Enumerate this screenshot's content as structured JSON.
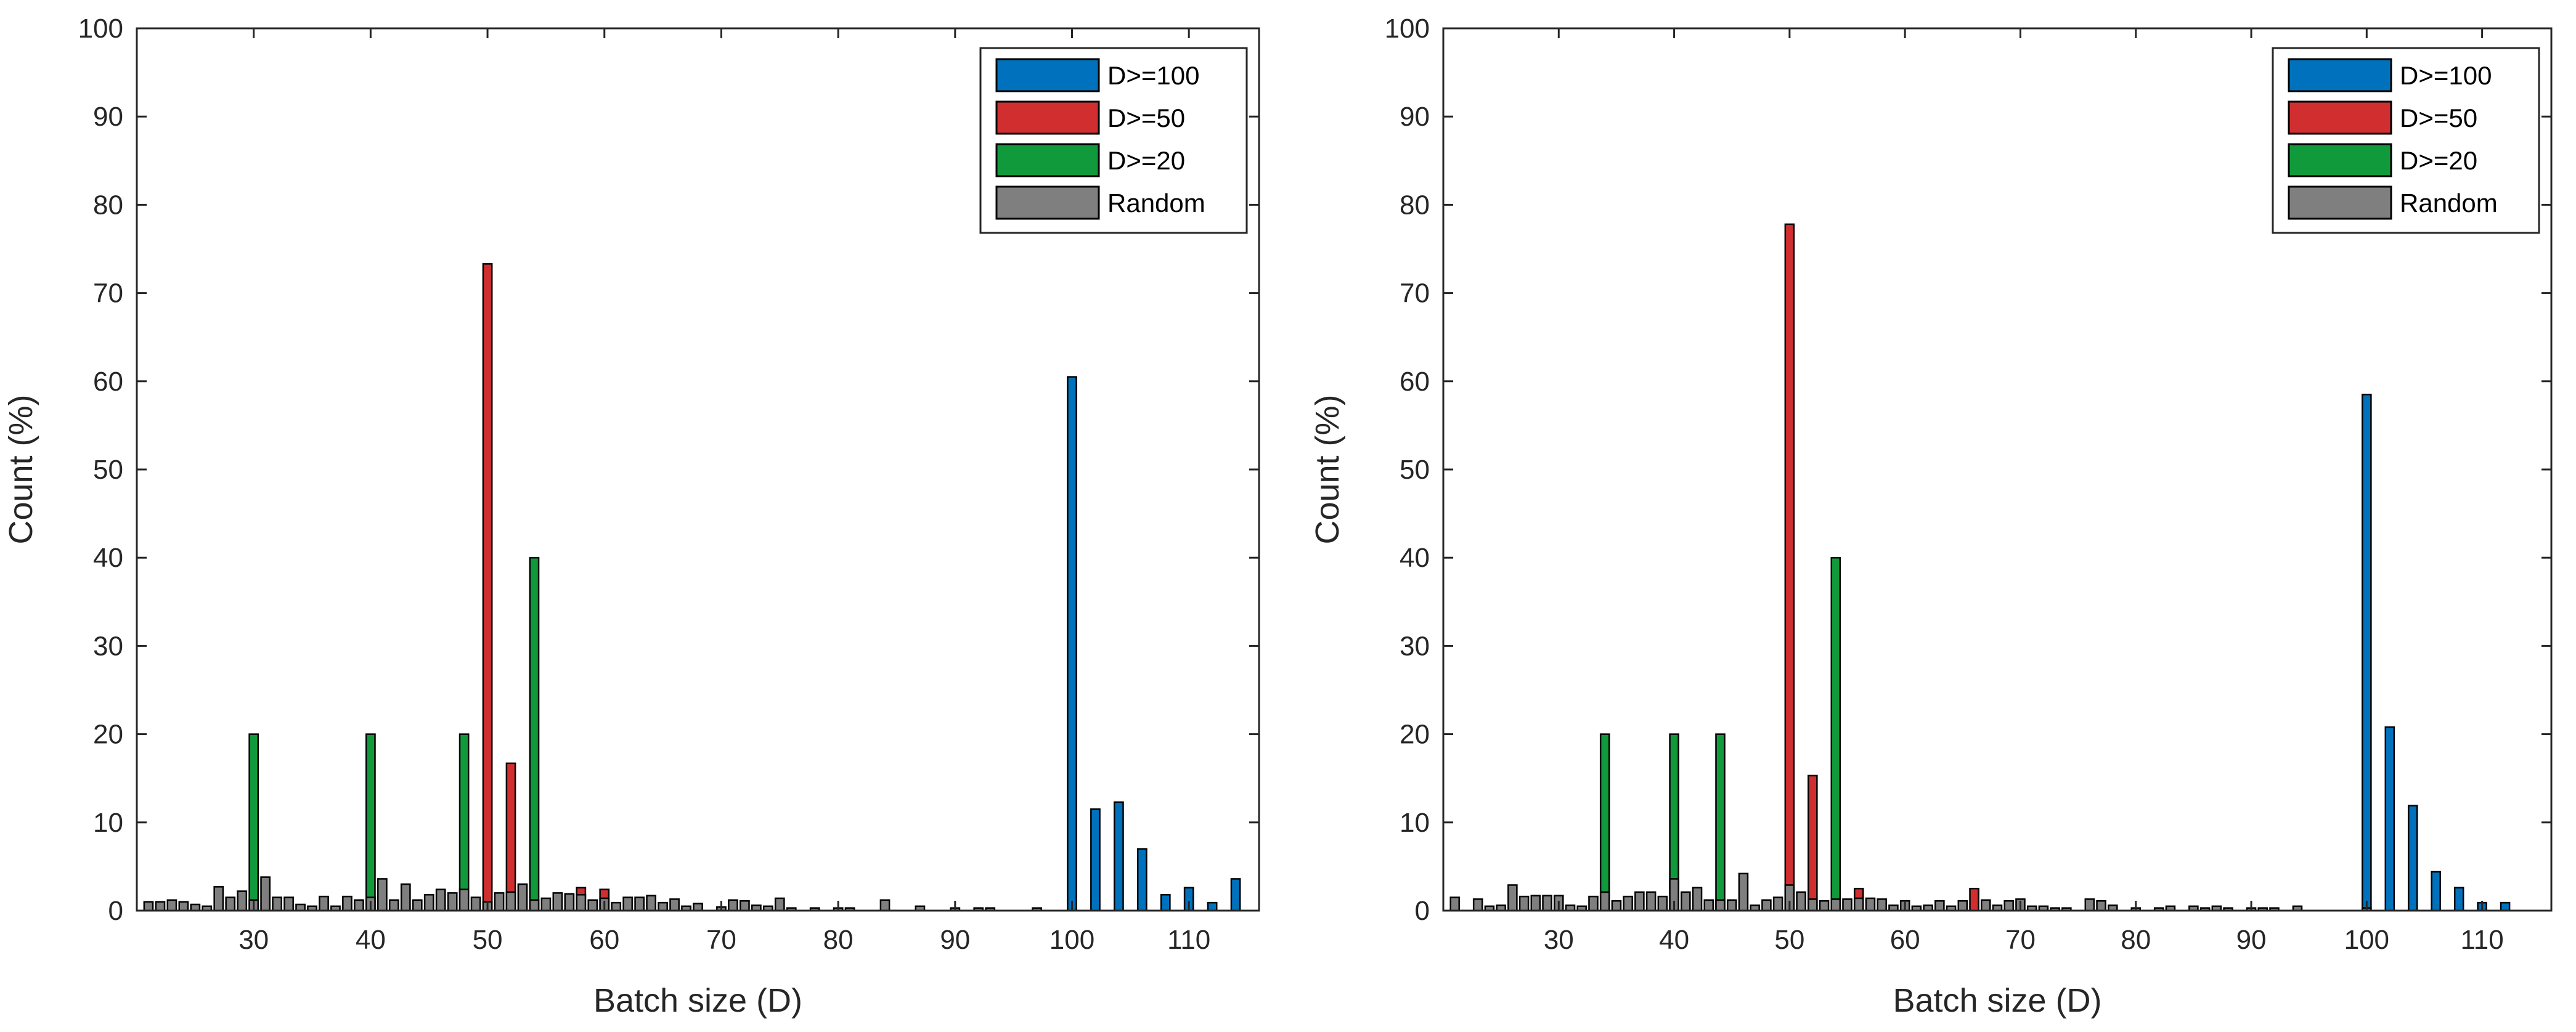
{
  "colors": {
    "D100": "#0072BD",
    "D50": "#D12F2F",
    "D20": "#119A3C",
    "Random": "#7F7F7F",
    "axis": "#262626",
    "edge": "#000000"
  },
  "chart_data": [
    {
      "type": "bar",
      "xlabel": "Batch size (D)",
      "ylabel": "Count (%)",
      "xlim": [
        20,
        116
      ],
      "ylim": [
        0,
        100
      ],
      "xticks": [
        30,
        40,
        50,
        60,
        70,
        80,
        90,
        100,
        110
      ],
      "yticks": [
        0,
        10,
        20,
        30,
        40,
        50,
        60,
        70,
        80,
        90,
        100
      ],
      "legend": [
        "D>=100",
        "D>=50",
        "D>=20",
        "Random"
      ],
      "legend_position": "top-right",
      "series": [
        {
          "name": "D>=100",
          "color_key": "D100",
          "points": [
            [
              100,
              60.5
            ],
            [
              102,
              11.5
            ],
            [
              104,
              12.3
            ],
            [
              106,
              7
            ],
            [
              108,
              1.8
            ],
            [
              110,
              2.6
            ],
            [
              112,
              0.9
            ],
            [
              114,
              3.6
            ]
          ]
        },
        {
          "name": "D>=50",
          "color_key": "D50",
          "points": [
            [
              50,
              73.3
            ],
            [
              52,
              16.7
            ],
            [
              58,
              2.6
            ],
            [
              60,
              2.4
            ]
          ]
        },
        {
          "name": "D>=20",
          "color_key": "D20",
          "points": [
            [
              30,
              20
            ],
            [
              40,
              20
            ],
            [
              48,
              20
            ],
            [
              54,
              40
            ]
          ]
        },
        {
          "name": "Random",
          "color_key": "Random",
          "points": [
            [
              21,
              1
            ],
            [
              22,
              1
            ],
            [
              23,
              1.2
            ],
            [
              24,
              1
            ],
            [
              25,
              0.7
            ],
            [
              26,
              0.5
            ],
            [
              27,
              2.7
            ],
            [
              28,
              1.5
            ],
            [
              29,
              2.2
            ],
            [
              30,
              1.2
            ],
            [
              31,
              3.8
            ],
            [
              32,
              1.5
            ],
            [
              33,
              1.5
            ],
            [
              34,
              0.7
            ],
            [
              35,
              0.5
            ],
            [
              36,
              1.6
            ],
            [
              37,
              0.5
            ],
            [
              38,
              1.6
            ],
            [
              39,
              1.2
            ],
            [
              40,
              1.5
            ],
            [
              41,
              3.6
            ],
            [
              42,
              1.2
            ],
            [
              43,
              3
            ],
            [
              44,
              1.2
            ],
            [
              45,
              1.8
            ],
            [
              46,
              2.4
            ],
            [
              47,
              2
            ],
            [
              48,
              2.4
            ],
            [
              49,
              1.5
            ],
            [
              50,
              1
            ],
            [
              51,
              2
            ],
            [
              52,
              2.1
            ],
            [
              53,
              3
            ],
            [
              54,
              1.2
            ],
            [
              55,
              1.4
            ],
            [
              56,
              2
            ],
            [
              57,
              1.9
            ],
            [
              58,
              1.8
            ],
            [
              59,
              1.2
            ],
            [
              60,
              1.4
            ],
            [
              61,
              0.9
            ],
            [
              62,
              1.5
            ],
            [
              63,
              1.5
            ],
            [
              64,
              1.7
            ],
            [
              65,
              0.9
            ],
            [
              66,
              1.3
            ],
            [
              67,
              0.5
            ],
            [
              68,
              0.8
            ],
            [
              70,
              0.4
            ],
            [
              71,
              1.2
            ],
            [
              72,
              1.1
            ],
            [
              73,
              0.6
            ],
            [
              74,
              0.5
            ],
            [
              75,
              1.4
            ],
            [
              76,
              0.3
            ],
            [
              78,
              0.3
            ],
            [
              80,
              0.3
            ],
            [
              81,
              0.3
            ],
            [
              84,
              1.2
            ],
            [
              87,
              0.5
            ],
            [
              90,
              0.3
            ],
            [
              92,
              0.3
            ],
            [
              93,
              0.3
            ],
            [
              97,
              0.3
            ]
          ]
        }
      ]
    },
    {
      "type": "bar",
      "xlabel": "Batch size (D)",
      "ylabel": "Count (%)",
      "xlim": [
        20,
        116
      ],
      "ylim": [
        0,
        100
      ],
      "xticks": [
        30,
        40,
        50,
        60,
        70,
        80,
        90,
        100,
        110
      ],
      "yticks": [
        0,
        10,
        20,
        30,
        40,
        50,
        60,
        70,
        80,
        90,
        100
      ],
      "legend": [
        "D>=100",
        "D>=50",
        "D>=20",
        "Random"
      ],
      "legend_position": "top-right",
      "series": [
        {
          "name": "D>=100",
          "color_key": "D100",
          "points": [
            [
              100,
              58.5
            ],
            [
              102,
              20.8
            ],
            [
              104,
              11.9
            ],
            [
              106,
              4.4
            ],
            [
              108,
              2.6
            ],
            [
              110,
              0.9
            ],
            [
              112,
              0.9
            ]
          ]
        },
        {
          "name": "D>=50",
          "color_key": "D50",
          "points": [
            [
              50,
              77.8
            ],
            [
              52,
              15.3
            ],
            [
              56,
              2.5
            ],
            [
              66,
              2.5
            ]
          ]
        },
        {
          "name": "D>=20",
          "color_key": "D20",
          "points": [
            [
              34,
              20
            ],
            [
              40,
              20
            ],
            [
              44,
              20
            ],
            [
              54,
              40
            ]
          ]
        },
        {
          "name": "Random",
          "color_key": "Random",
          "points": [
            [
              21,
              1.5
            ],
            [
              23,
              1.3
            ],
            [
              24,
              0.5
            ],
            [
              25,
              0.6
            ],
            [
              26,
              2.9
            ],
            [
              27,
              1.6
            ],
            [
              28,
              1.7
            ],
            [
              29,
              1.7
            ],
            [
              30,
              1.7
            ],
            [
              31,
              0.6
            ],
            [
              32,
              0.5
            ],
            [
              33,
              1.6
            ],
            [
              34,
              2.1
            ],
            [
              35,
              1.1
            ],
            [
              36,
              1.6
            ],
            [
              37,
              2.1
            ],
            [
              38,
              2.1
            ],
            [
              39,
              1.6
            ],
            [
              40,
              3.6
            ],
            [
              41,
              2.1
            ],
            [
              42,
              2.6
            ],
            [
              43,
              1.2
            ],
            [
              44,
              1.2
            ],
            [
              45,
              1.2
            ],
            [
              46,
              4.2
            ],
            [
              47,
              0.6
            ],
            [
              48,
              1.2
            ],
            [
              49,
              1.5
            ],
            [
              50,
              2.9
            ],
            [
              51,
              2.1
            ],
            [
              52,
              1.3
            ],
            [
              53,
              1.1
            ],
            [
              54,
              1.3
            ],
            [
              55,
              1.3
            ],
            [
              56,
              1.4
            ],
            [
              57,
              1.4
            ],
            [
              58,
              1.3
            ],
            [
              59,
              0.6
            ],
            [
              60,
              1.1
            ],
            [
              61,
              0.5
            ],
            [
              62,
              0.6
            ],
            [
              63,
              1.1
            ],
            [
              64,
              0.5
            ],
            [
              65,
              1.1
            ],
            [
              67,
              1.2
            ],
            [
              68,
              0.6
            ],
            [
              69,
              1.1
            ],
            [
              70,
              1.3
            ],
            [
              71,
              0.5
            ],
            [
              72,
              0.5
            ],
            [
              73,
              0.3
            ],
            [
              74,
              0.3
            ],
            [
              76,
              1.3
            ],
            [
              77,
              1.1
            ],
            [
              78,
              0.6
            ],
            [
              80,
              0.3
            ],
            [
              82,
              0.3
            ],
            [
              83,
              0.5
            ],
            [
              85,
              0.5
            ],
            [
              86,
              0.3
            ],
            [
              87,
              0.5
            ],
            [
              88,
              0.3
            ],
            [
              90,
              0.3
            ],
            [
              91,
              0.3
            ],
            [
              92,
              0.3
            ],
            [
              94,
              0.5
            ],
            [
              100,
              0.3
            ]
          ]
        }
      ]
    }
  ]
}
